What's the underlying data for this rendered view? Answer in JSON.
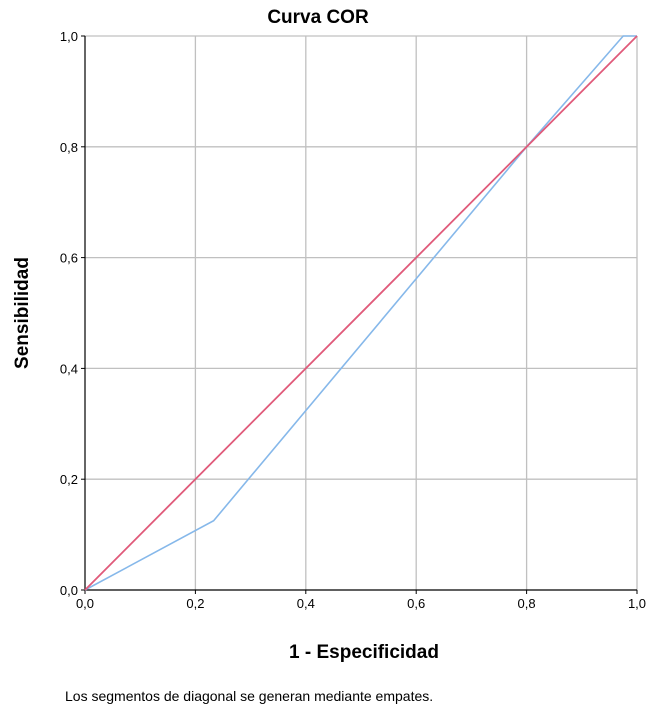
{
  "chart_data": {
    "type": "line",
    "title": "Curva COR",
    "xlabel": "1 - Especificidad",
    "ylabel": "Sensibilidad",
    "xlim": [
      0,
      1
    ],
    "ylim": [
      0,
      1
    ],
    "grid": true,
    "x_ticks": [
      "0,0",
      "0,2",
      "0,4",
      "0,6",
      "0,8",
      "1,0"
    ],
    "y_ticks": [
      "0,0",
      "0,2",
      "0,4",
      "0,6",
      "0,8",
      "1,0"
    ],
    "series": [
      {
        "color": "#86b8ea",
        "points": [
          [
            0,
            0
          ],
          [
            0.233,
            0.125
          ],
          [
            0.8,
            0.8
          ],
          [
            0.975,
            1.0
          ],
          [
            1.0,
            1.0
          ]
        ]
      },
      {
        "color": "#e05a7a",
        "points": [
          [
            0,
            0
          ],
          [
            1,
            1
          ]
        ]
      }
    ],
    "footnote": "Los segmentos de diagonal se generan mediante empates."
  }
}
